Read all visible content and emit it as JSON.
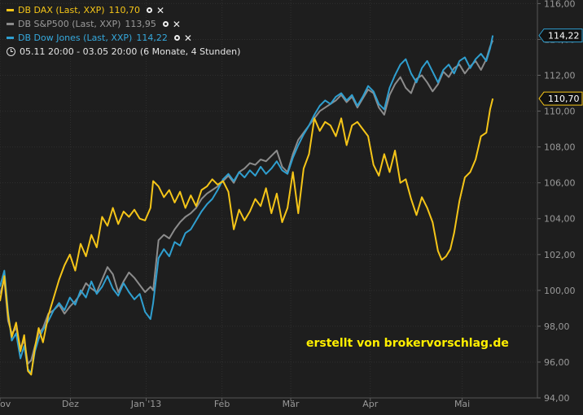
{
  "legend": {
    "series": [
      {
        "label": "DB DAX (Last, XXP)",
        "value": "110,70",
        "color": "#f5c518"
      },
      {
        "label": "DB S&P500 (Last, XXP)",
        "value": "113,95",
        "color": "#8c8c8c"
      },
      {
        "label": "DB Dow Jones (Last, XXP)",
        "value": "114,22",
        "color": "#2f9fd0"
      }
    ],
    "period": "05.11 20:00 - 03.05 20:00 (6 Monate, 4 Stunden)"
  },
  "watermark": "erstellt von brokervorschlag.de",
  "chart_data": {
    "type": "line",
    "y_ticks": [
      "94,00",
      "96,00",
      "98,00",
      "100,00",
      "102,00",
      "104,00",
      "106,00",
      "108,00",
      "110,00",
      "112,00",
      "114,00",
      "116,00"
    ],
    "ylim": [
      94,
      116.2
    ],
    "x_ticks": [
      {
        "label": "ov",
        "t": 0
      },
      {
        "label": "Dez",
        "t": 0.131
      },
      {
        "label": "Jan '13",
        "t": 0.272
      },
      {
        "label": "Feb",
        "t": 0.413
      },
      {
        "label": "Mär",
        "t": 0.541
      },
      {
        "label": "Apr",
        "t": 0.689
      },
      {
        "label": "Mai",
        "t": 0.86
      }
    ],
    "price_labels": [
      {
        "value": "114,22",
        "y": 114.22,
        "color": "#2f9fd0"
      },
      {
        "value": "110,70",
        "y": 110.7,
        "color": "#f5c518"
      }
    ],
    "series": [
      {
        "name": "DB DAX (Last, XXP)",
        "color": "#f5c518",
        "points": [
          [
            0,
            99.4
          ],
          [
            0.008,
            100.8
          ],
          [
            0.015,
            98.6
          ],
          [
            0.022,
            97.4
          ],
          [
            0.03,
            98.2
          ],
          [
            0.038,
            96.6
          ],
          [
            0.045,
            97.5
          ],
          [
            0.052,
            95.5
          ],
          [
            0.058,
            95.3
          ],
          [
            0.065,
            96.8
          ],
          [
            0.072,
            97.9
          ],
          [
            0.08,
            97.1
          ],
          [
            0.09,
            98.6
          ],
          [
            0.1,
            99.6
          ],
          [
            0.11,
            100.6
          ],
          [
            0.12,
            101.4
          ],
          [
            0.13,
            102.0
          ],
          [
            0.14,
            101.1
          ],
          [
            0.15,
            102.6
          ],
          [
            0.16,
            101.9
          ],
          [
            0.17,
            103.1
          ],
          [
            0.18,
            102.4
          ],
          [
            0.19,
            104.1
          ],
          [
            0.2,
            103.6
          ],
          [
            0.21,
            104.6
          ],
          [
            0.22,
            103.7
          ],
          [
            0.23,
            104.4
          ],
          [
            0.24,
            104.1
          ],
          [
            0.25,
            104.5
          ],
          [
            0.26,
            104.0
          ],
          [
            0.27,
            103.9
          ],
          [
            0.28,
            104.6
          ],
          [
            0.285,
            106.1
          ],
          [
            0.295,
            105.8
          ],
          [
            0.305,
            105.2
          ],
          [
            0.315,
            105.6
          ],
          [
            0.325,
            104.9
          ],
          [
            0.335,
            105.5
          ],
          [
            0.345,
            104.6
          ],
          [
            0.355,
            105.3
          ],
          [
            0.365,
            104.7
          ],
          [
            0.375,
            105.6
          ],
          [
            0.385,
            105.8
          ],
          [
            0.395,
            106.2
          ],
          [
            0.405,
            105.9
          ],
          [
            0.415,
            106.1
          ],
          [
            0.425,
            105.5
          ],
          [
            0.435,
            103.4
          ],
          [
            0.445,
            104.5
          ],
          [
            0.455,
            103.9
          ],
          [
            0.465,
            104.4
          ],
          [
            0.475,
            105.1
          ],
          [
            0.485,
            104.7
          ],
          [
            0.495,
            105.7
          ],
          [
            0.505,
            104.3
          ],
          [
            0.515,
            105.4
          ],
          [
            0.525,
            103.8
          ],
          [
            0.535,
            104.6
          ],
          [
            0.545,
            106.6
          ],
          [
            0.555,
            104.3
          ],
          [
            0.565,
            106.8
          ],
          [
            0.575,
            107.6
          ],
          [
            0.585,
            109.6
          ],
          [
            0.595,
            108.9
          ],
          [
            0.605,
            109.4
          ],
          [
            0.615,
            109.2
          ],
          [
            0.625,
            108.6
          ],
          [
            0.635,
            109.6
          ],
          [
            0.645,
            108.1
          ],
          [
            0.655,
            109.2
          ],
          [
            0.665,
            109.4
          ],
          [
            0.675,
            109.0
          ],
          [
            0.685,
            108.6
          ],
          [
            0.695,
            107.0
          ],
          [
            0.705,
            106.4
          ],
          [
            0.715,
            107.6
          ],
          [
            0.725,
            106.6
          ],
          [
            0.735,
            107.8
          ],
          [
            0.745,
            106.0
          ],
          [
            0.755,
            106.2
          ],
          [
            0.765,
            105.1
          ],
          [
            0.775,
            104.2
          ],
          [
            0.785,
            105.2
          ],
          [
            0.795,
            104.6
          ],
          [
            0.805,
            103.8
          ],
          [
            0.815,
            102.2
          ],
          [
            0.822,
            101.7
          ],
          [
            0.83,
            101.9
          ],
          [
            0.838,
            102.3
          ],
          [
            0.845,
            103.2
          ],
          [
            0.855,
            105.0
          ],
          [
            0.865,
            106.3
          ],
          [
            0.875,
            106.6
          ],
          [
            0.885,
            107.3
          ],
          [
            0.895,
            108.6
          ],
          [
            0.905,
            108.8
          ],
          [
            0.912,
            110.1
          ],
          [
            0.917,
            110.7
          ]
        ]
      },
      {
        "name": "DB S&P500 (Last, XXP)",
        "color": "#8c8c8c",
        "points": [
          [
            0,
            99.8
          ],
          [
            0.008,
            100.6
          ],
          [
            0.015,
            98.3
          ],
          [
            0.022,
            97.6
          ],
          [
            0.03,
            97.9
          ],
          [
            0.038,
            96.8
          ],
          [
            0.045,
            97.2
          ],
          [
            0.052,
            95.9
          ],
          [
            0.058,
            96.1
          ],
          [
            0.065,
            96.9
          ],
          [
            0.072,
            97.6
          ],
          [
            0.08,
            97.9
          ],
          [
            0.09,
            98.7
          ],
          [
            0.1,
            98.9
          ],
          [
            0.11,
            99.2
          ],
          [
            0.12,
            98.7
          ],
          [
            0.13,
            99.1
          ],
          [
            0.14,
            99.4
          ],
          [
            0.15,
            99.8
          ],
          [
            0.16,
            100.4
          ],
          [
            0.17,
            100.1
          ],
          [
            0.18,
            99.9
          ],
          [
            0.19,
            100.6
          ],
          [
            0.2,
            101.3
          ],
          [
            0.21,
            100.9
          ],
          [
            0.22,
            99.9
          ],
          [
            0.23,
            100.5
          ],
          [
            0.24,
            101.0
          ],
          [
            0.25,
            100.7
          ],
          [
            0.26,
            100.3
          ],
          [
            0.27,
            99.9
          ],
          [
            0.28,
            100.2
          ],
          [
            0.285,
            100.0
          ],
          [
            0.295,
            102.8
          ],
          [
            0.305,
            103.1
          ],
          [
            0.315,
            102.9
          ],
          [
            0.325,
            103.4
          ],
          [
            0.335,
            103.8
          ],
          [
            0.345,
            104.1
          ],
          [
            0.355,
            104.3
          ],
          [
            0.365,
            104.6
          ],
          [
            0.375,
            105.1
          ],
          [
            0.385,
            105.4
          ],
          [
            0.395,
            105.6
          ],
          [
            0.405,
            105.8
          ],
          [
            0.415,
            106.1
          ],
          [
            0.425,
            106.4
          ],
          [
            0.435,
            106.0
          ],
          [
            0.445,
            106.6
          ],
          [
            0.455,
            106.8
          ],
          [
            0.465,
            107.1
          ],
          [
            0.475,
            107.0
          ],
          [
            0.485,
            107.3
          ],
          [
            0.495,
            107.2
          ],
          [
            0.505,
            107.5
          ],
          [
            0.515,
            107.8
          ],
          [
            0.525,
            106.9
          ],
          [
            0.535,
            106.6
          ],
          [
            0.545,
            107.6
          ],
          [
            0.555,
            108.4
          ],
          [
            0.565,
            108.8
          ],
          [
            0.575,
            109.2
          ],
          [
            0.585,
            109.6
          ],
          [
            0.595,
            110.0
          ],
          [
            0.605,
            110.2
          ],
          [
            0.615,
            110.4
          ],
          [
            0.625,
            110.6
          ],
          [
            0.635,
            110.9
          ],
          [
            0.645,
            110.5
          ],
          [
            0.655,
            110.8
          ],
          [
            0.665,
            110.2
          ],
          [
            0.675,
            110.7
          ],
          [
            0.685,
            111.2
          ],
          [
            0.695,
            111.0
          ],
          [
            0.705,
            110.2
          ],
          [
            0.715,
            109.8
          ],
          [
            0.725,
            110.9
          ],
          [
            0.735,
            111.5
          ],
          [
            0.745,
            111.9
          ],
          [
            0.755,
            111.3
          ],
          [
            0.765,
            111.0
          ],
          [
            0.775,
            111.8
          ],
          [
            0.785,
            112.0
          ],
          [
            0.795,
            111.6
          ],
          [
            0.805,
            111.1
          ],
          [
            0.815,
            111.5
          ],
          [
            0.825,
            112.2
          ],
          [
            0.835,
            111.9
          ],
          [
            0.845,
            112.4
          ],
          [
            0.855,
            112.6
          ],
          [
            0.865,
            112.1
          ],
          [
            0.875,
            112.5
          ],
          [
            0.885,
            112.8
          ],
          [
            0.895,
            112.3
          ],
          [
            0.905,
            112.9
          ],
          [
            0.912,
            113.6
          ],
          [
            0.917,
            113.95
          ]
        ]
      },
      {
        "name": "DB Dow Jones (Last, XXP)",
        "color": "#2f9fd0",
        "points": [
          [
            0,
            100.2
          ],
          [
            0.008,
            101.1
          ],
          [
            0.015,
            98.8
          ],
          [
            0.022,
            97.2
          ],
          [
            0.03,
            97.6
          ],
          [
            0.038,
            96.2
          ],
          [
            0.045,
            96.9
          ],
          [
            0.052,
            95.6
          ],
          [
            0.058,
            95.4
          ],
          [
            0.065,
            96.6
          ],
          [
            0.072,
            97.3
          ],
          [
            0.08,
            97.8
          ],
          [
            0.09,
            98.3
          ],
          [
            0.1,
            98.9
          ],
          [
            0.11,
            99.3
          ],
          [
            0.12,
            98.9
          ],
          [
            0.13,
            99.6
          ],
          [
            0.14,
            99.2
          ],
          [
            0.15,
            100.0
          ],
          [
            0.16,
            99.6
          ],
          [
            0.17,
            100.5
          ],
          [
            0.18,
            99.8
          ],
          [
            0.19,
            100.2
          ],
          [
            0.2,
            100.8
          ],
          [
            0.21,
            100.1
          ],
          [
            0.22,
            99.7
          ],
          [
            0.23,
            100.4
          ],
          [
            0.24,
            99.9
          ],
          [
            0.25,
            99.5
          ],
          [
            0.26,
            99.8
          ],
          [
            0.27,
            98.8
          ],
          [
            0.28,
            98.4
          ],
          [
            0.285,
            99.3
          ],
          [
            0.295,
            101.8
          ],
          [
            0.305,
            102.3
          ],
          [
            0.315,
            101.9
          ],
          [
            0.325,
            102.7
          ],
          [
            0.335,
            102.5
          ],
          [
            0.345,
            103.2
          ],
          [
            0.355,
            103.4
          ],
          [
            0.365,
            103.9
          ],
          [
            0.375,
            104.4
          ],
          [
            0.385,
            104.8
          ],
          [
            0.395,
            105.1
          ],
          [
            0.405,
            105.6
          ],
          [
            0.415,
            106.2
          ],
          [
            0.425,
            106.5
          ],
          [
            0.435,
            106.1
          ],
          [
            0.445,
            106.6
          ],
          [
            0.455,
            106.3
          ],
          [
            0.465,
            106.7
          ],
          [
            0.475,
            106.4
          ],
          [
            0.485,
            106.9
          ],
          [
            0.495,
            106.5
          ],
          [
            0.505,
            106.8
          ],
          [
            0.515,
            107.2
          ],
          [
            0.525,
            106.7
          ],
          [
            0.535,
            106.5
          ],
          [
            0.545,
            107.4
          ],
          [
            0.555,
            108.1
          ],
          [
            0.565,
            108.7
          ],
          [
            0.575,
            109.2
          ],
          [
            0.585,
            109.8
          ],
          [
            0.595,
            110.3
          ],
          [
            0.605,
            110.6
          ],
          [
            0.615,
            110.4
          ],
          [
            0.625,
            110.8
          ],
          [
            0.635,
            111.0
          ],
          [
            0.645,
            110.6
          ],
          [
            0.655,
            110.9
          ],
          [
            0.665,
            110.3
          ],
          [
            0.675,
            110.8
          ],
          [
            0.685,
            111.4
          ],
          [
            0.695,
            111.1
          ],
          [
            0.705,
            110.4
          ],
          [
            0.715,
            110.1
          ],
          [
            0.725,
            111.3
          ],
          [
            0.735,
            112.0
          ],
          [
            0.745,
            112.6
          ],
          [
            0.755,
            112.9
          ],
          [
            0.765,
            112.1
          ],
          [
            0.775,
            111.6
          ],
          [
            0.785,
            112.4
          ],
          [
            0.795,
            112.8
          ],
          [
            0.805,
            112.2
          ],
          [
            0.815,
            111.6
          ],
          [
            0.825,
            112.3
          ],
          [
            0.835,
            112.6
          ],
          [
            0.845,
            112.1
          ],
          [
            0.855,
            112.8
          ],
          [
            0.865,
            113.0
          ],
          [
            0.875,
            112.4
          ],
          [
            0.885,
            112.9
          ],
          [
            0.895,
            113.2
          ],
          [
            0.905,
            112.8
          ],
          [
            0.912,
            113.5
          ],
          [
            0.917,
            114.22
          ]
        ]
      }
    ]
  }
}
